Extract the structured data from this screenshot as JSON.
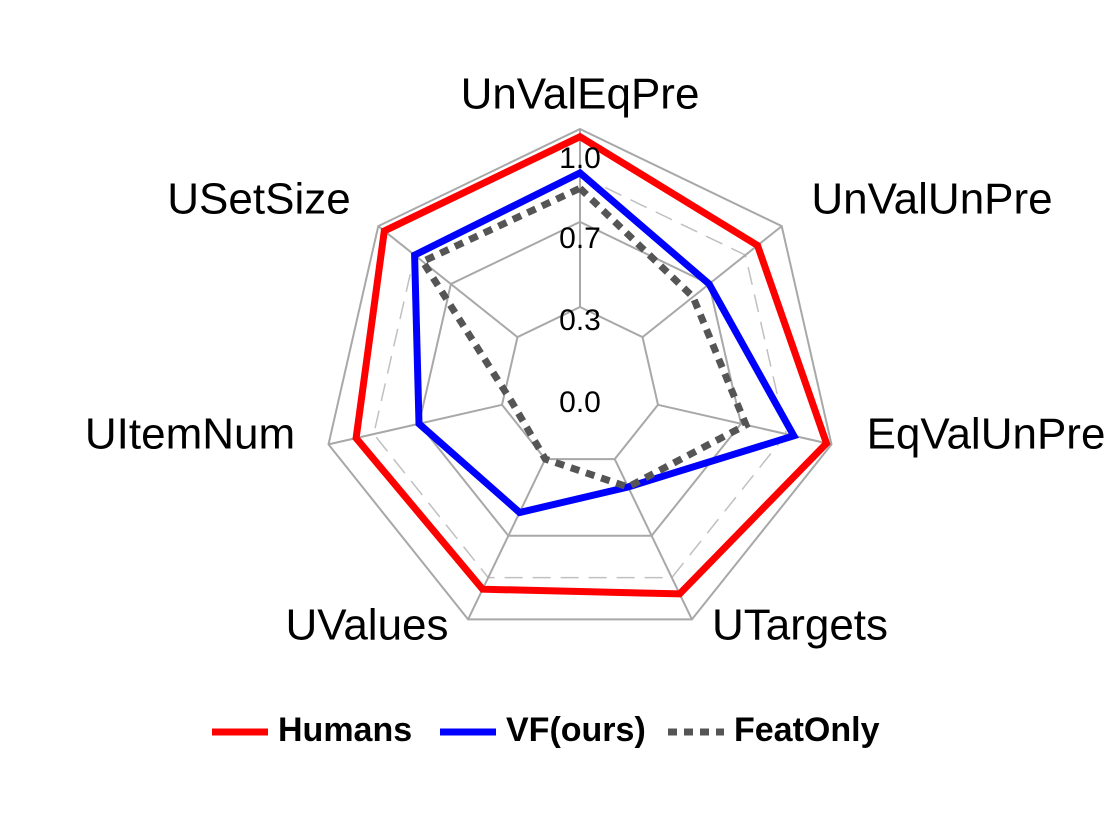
{
  "chart_data": {
    "type": "radar",
    "axes": [
      "UnValEqPre",
      "UnValUnPre",
      "EqValUnPre",
      "UTargets",
      "UValues",
      "UItemNum",
      "USetSize"
    ],
    "ticks": [
      0.0,
      0.3,
      0.7,
      1.0
    ],
    "tick_labels": [
      "0.0",
      "0.3",
      "0.7",
      "1.0"
    ],
    "range": [
      0.0,
      1.0
    ],
    "grid": true,
    "legend_position": "bottom",
    "series": [
      {
        "name": "Humans",
        "values": [
          0.97,
          0.88,
          0.98,
          0.89,
          0.87,
          0.89,
          0.97
        ],
        "color": "#ff0000",
        "style": "solid"
      },
      {
        "name": "VF(ours)",
        "values": [
          0.83,
          0.64,
          0.85,
          0.43,
          0.54,
          0.64,
          0.82
        ],
        "color": "#0000ff",
        "style": "solid"
      },
      {
        "name": "FeatOnly",
        "values": [
          0.77,
          0.56,
          0.66,
          0.43,
          0.31,
          0.27,
          0.78
        ],
        "color": "#555555",
        "style": "dotted"
      }
    ]
  }
}
